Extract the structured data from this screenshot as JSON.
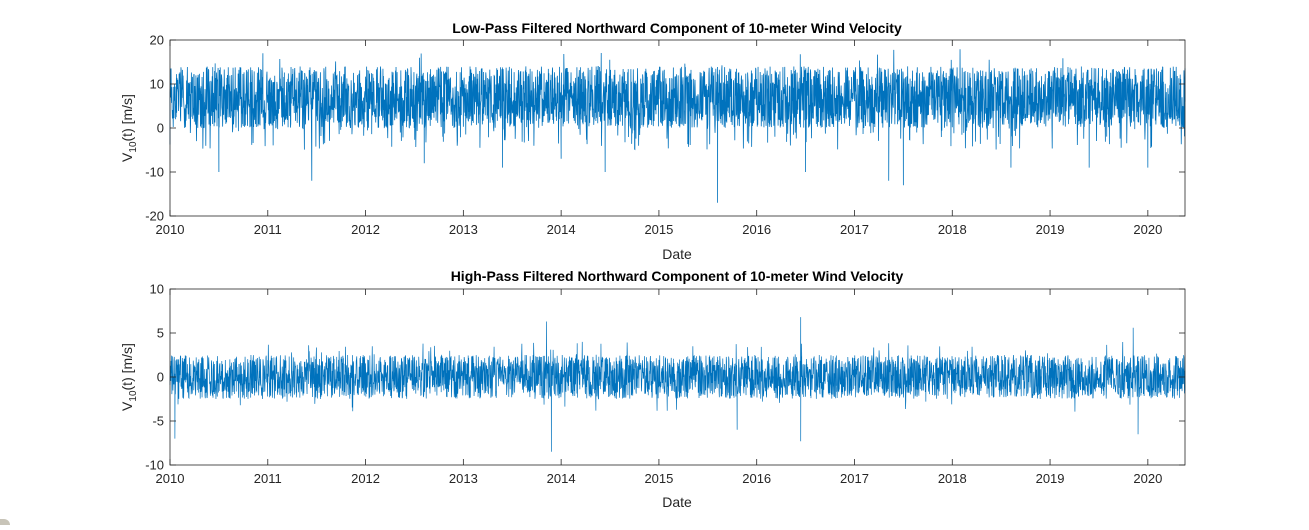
{
  "figure": {
    "background": "#ffffff",
    "line_color": "#0072BD",
    "axis_color": "#262626"
  },
  "chart_data": [
    {
      "type": "line",
      "title": "Low-Pass Filtered Northward Component of 10-meter Wind Velocity",
      "xlabel": "Date",
      "ylabel_main": "V",
      "ylabel_sub": "10",
      "ylabel_rest": "(t) [m/s]",
      "xlim": [
        2010.0,
        2020.38
      ],
      "ylim": [
        -20,
        20
      ],
      "xticks": [
        2010,
        2011,
        2012,
        2013,
        2014,
        2015,
        2016,
        2017,
        2018,
        2019,
        2020
      ],
      "xtick_labels": [
        "2010",
        "2011",
        "2012",
        "2013",
        "2014",
        "2015",
        "2016",
        "2017",
        "2018",
        "2019",
        "2020"
      ],
      "yticks": [
        -20,
        -10,
        0,
        10,
        20
      ],
      "ytick_labels": [
        "-20",
        "-10",
        "0",
        "10",
        "20"
      ],
      "grid": false,
      "series": [
        {
          "description_of_shape": "dense daily time series",
          "baseline": 7,
          "noise_half_range": 7,
          "x": [
            2010.0,
            2010.5,
            2010.95,
            2011.45,
            2012.6,
            2013.4,
            2014.0,
            2014.45,
            2015.6,
            2016.5,
            2017.35,
            2017.5,
            2018.6,
            2019.4,
            2020.0,
            2020.38
          ],
          "y": [
            8,
            -10,
            17,
            -12,
            -8,
            -9,
            -7,
            -10,
            -17,
            -10,
            -12,
            -13,
            -9,
            -9,
            -9,
            6
          ]
        }
      ]
    },
    {
      "type": "line",
      "title": "High-Pass Filtered Northward Component of 10-meter Wind Velocity",
      "xlabel": "Date",
      "ylabel_main": "V",
      "ylabel_sub": "10",
      "ylabel_rest": "(t) [m/s]",
      "xlim": [
        2010.0,
        2020.38
      ],
      "ylim": [
        -10,
        10
      ],
      "xticks": [
        2010,
        2011,
        2012,
        2013,
        2014,
        2015,
        2016,
        2017,
        2018,
        2019,
        2020
      ],
      "xtick_labels": [
        "2010",
        "2011",
        "2012",
        "2013",
        "2014",
        "2015",
        "2016",
        "2017",
        "2018",
        "2019",
        "2020"
      ],
      "yticks": [
        -10,
        -5,
        0,
        5,
        10
      ],
      "ytick_labels": [
        "-10",
        "-5",
        "0",
        "5",
        "10"
      ],
      "grid": false,
      "series": [
        {
          "description_of_shape": "dense daily time series centered on zero",
          "baseline": 0,
          "noise_half_range": 2.5,
          "x": [
            2010.05,
            2013.85,
            2013.9,
            2015.8,
            2016.45,
            2016.45,
            2019.85,
            2019.9
          ],
          "y": [
            -7,
            6.3,
            -8.5,
            -6,
            6.8,
            -7.3,
            5.6,
            -6.5
          ]
        }
      ]
    }
  ]
}
